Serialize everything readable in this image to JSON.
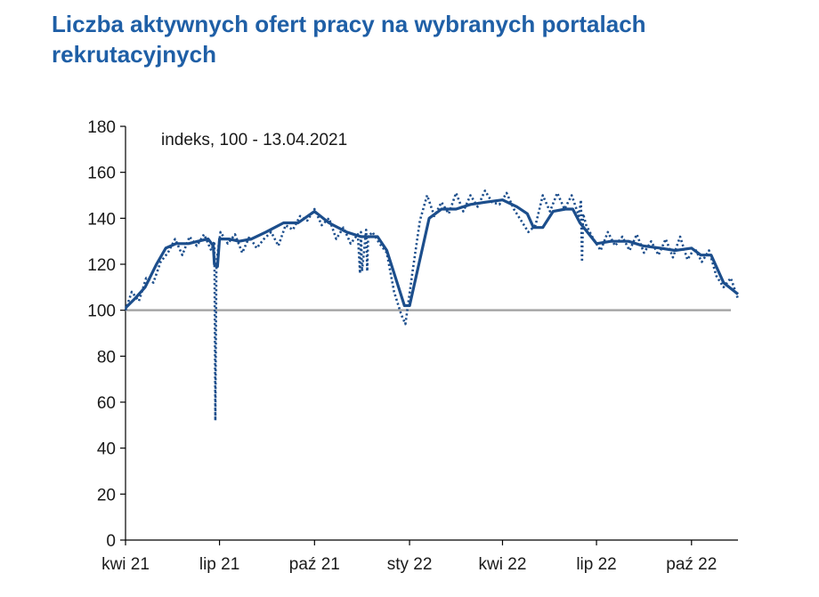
{
  "header": {
    "title": "Liczba aktywnych ofert pracy na wybranych portalach rekrutacyjnych"
  },
  "chart_data": {
    "type": "line",
    "title": "Liczba aktywnych ofert pracy na wybranych portalach rekrutacyjnych",
    "annotation": "indeks, 100 - 13.04.2021",
    "xlabel": "",
    "ylabel": "",
    "ylim": [
      0,
      180
    ],
    "yticks": [
      0,
      20,
      40,
      60,
      80,
      100,
      120,
      140,
      160,
      180
    ],
    "xlim": [
      "2021-04-01",
      "2022-11-15"
    ],
    "xticks": [
      {
        "date": "2021-04-01",
        "label": "kwi 21"
      },
      {
        "date": "2021-07-01",
        "label": "lip 21"
      },
      {
        "date": "2021-10-01",
        "label": "paź 21"
      },
      {
        "date": "2022-01-01",
        "label": "sty 22"
      },
      {
        "date": "2022-04-01",
        "label": "kwi 22"
      },
      {
        "date": "2022-07-01",
        "label": "lip 22"
      },
      {
        "date": "2022-10-01",
        "label": "paź 22"
      }
    ],
    "reference_line": 100,
    "grid": false,
    "colors": {
      "series": "#1c4e8c",
      "reference": "#a6a6a6",
      "title": "#1f5fa6"
    },
    "series": [
      {
        "style": "solid",
        "x": [
          "2021-04-01",
          "2021-04-10",
          "2021-04-20",
          "2021-05-01",
          "2021-05-10",
          "2021-05-20",
          "2021-06-01",
          "2021-06-10",
          "2021-06-20",
          "2021-06-25",
          "2021-06-26",
          "2021-06-29",
          "2021-07-01",
          "2021-07-10",
          "2021-07-20",
          "2021-08-01",
          "2021-08-15",
          "2021-09-01",
          "2021-09-15",
          "2021-10-01",
          "2021-10-15",
          "2021-11-01",
          "2021-11-15",
          "2021-12-01",
          "2021-12-10",
          "2021-12-20",
          "2021-12-27",
          "2022-01-01",
          "2022-01-10",
          "2022-01-20",
          "2022-02-01",
          "2022-02-15",
          "2022-03-01",
          "2022-03-15",
          "2022-04-01",
          "2022-04-15",
          "2022-04-25",
          "2022-05-01",
          "2022-05-10",
          "2022-05-20",
          "2022-06-01",
          "2022-06-08",
          "2022-06-15",
          "2022-07-01",
          "2022-07-15",
          "2022-08-01",
          "2022-08-15",
          "2022-09-01",
          "2022-09-15",
          "2022-10-01",
          "2022-10-10",
          "2022-10-20",
          "2022-11-01",
          "2022-11-15"
        ],
        "values": [
          101,
          105,
          110,
          120,
          127,
          129,
          129,
          130,
          131,
          128,
          120,
          119,
          131,
          131,
          130,
          131,
          134,
          138,
          138,
          143,
          138,
          134,
          132,
          132,
          126,
          112,
          102,
          102,
          120,
          140,
          144,
          144,
          146,
          147,
          148,
          145,
          142,
          136,
          136,
          143,
          144,
          144,
          138,
          129,
          130,
          130,
          128,
          127,
          126,
          127,
          124,
          124,
          112,
          107
        ]
      },
      {
        "style": "dotted",
        "x": [
          "2021-04-01",
          "2021-04-07",
          "2021-04-14",
          "2021-04-21",
          "2021-04-28",
          "2021-05-05",
          "2021-05-12",
          "2021-05-19",
          "2021-05-26",
          "2021-06-02",
          "2021-06-09",
          "2021-06-16",
          "2021-06-23",
          "2021-06-26",
          "2021-06-27",
          "2021-06-28",
          "2021-07-02",
          "2021-07-09",
          "2021-07-16",
          "2021-07-23",
          "2021-07-30",
          "2021-08-06",
          "2021-08-13",
          "2021-08-20",
          "2021-08-27",
          "2021-09-03",
          "2021-09-10",
          "2021-09-17",
          "2021-09-24",
          "2021-10-01",
          "2021-10-08",
          "2021-10-15",
          "2021-10-22",
          "2021-10-29",
          "2021-11-05",
          "2021-11-12",
          "2021-11-14",
          "2021-11-15",
          "2021-11-16",
          "2021-11-20",
          "2021-11-21",
          "2021-11-22",
          "2021-11-26",
          "2021-12-03",
          "2021-12-10",
          "2021-12-17",
          "2021-12-24",
          "2021-12-28",
          "2022-01-04",
          "2022-01-11",
          "2022-01-18",
          "2022-01-25",
          "2022-02-01",
          "2022-02-08",
          "2022-02-15",
          "2022-02-22",
          "2022-03-01",
          "2022-03-08",
          "2022-03-15",
          "2022-03-22",
          "2022-03-29",
          "2022-04-05",
          "2022-04-12",
          "2022-04-19",
          "2022-04-26",
          "2022-05-03",
          "2022-05-10",
          "2022-05-17",
          "2022-05-24",
          "2022-05-31",
          "2022-06-07",
          "2022-06-14",
          "2022-06-16",
          "2022-06-17",
          "2022-06-18",
          "2022-06-21",
          "2022-06-28",
          "2022-07-05",
          "2022-07-12",
          "2022-07-19",
          "2022-07-26",
          "2022-08-02",
          "2022-08-09",
          "2022-08-16",
          "2022-08-23",
          "2022-08-30",
          "2022-09-06",
          "2022-09-13",
          "2022-09-20",
          "2022-09-27",
          "2022-10-04",
          "2022-10-11",
          "2022-10-18",
          "2022-10-25",
          "2022-11-01",
          "2022-11-08",
          "2022-11-15"
        ],
        "values": [
          100,
          108,
          104,
          114,
          112,
          121,
          125,
          131,
          124,
          132,
          128,
          133,
          126,
          130,
          52,
          121,
          134,
          129,
          133,
          125,
          132,
          127,
          131,
          134,
          128,
          137,
          135,
          141,
          139,
          144,
          137,
          140,
          131,
          136,
          129,
          133,
          116,
          134,
          117,
          135,
          117,
          132,
          134,
          129,
          125,
          108,
          98,
          94,
          117,
          139,
          150,
          141,
          147,
          142,
          151,
          143,
          150,
          145,
          152,
          147,
          146,
          151,
          144,
          139,
          134,
          137,
          150,
          143,
          151,
          144,
          150,
          141,
          148,
          121,
          142,
          137,
          131,
          126,
          134,
          128,
          132,
          126,
          133,
          125,
          130,
          124,
          131,
          123,
          132,
          122,
          127,
          121,
          126,
          115,
          110,
          114,
          105
        ]
      }
    ]
  }
}
